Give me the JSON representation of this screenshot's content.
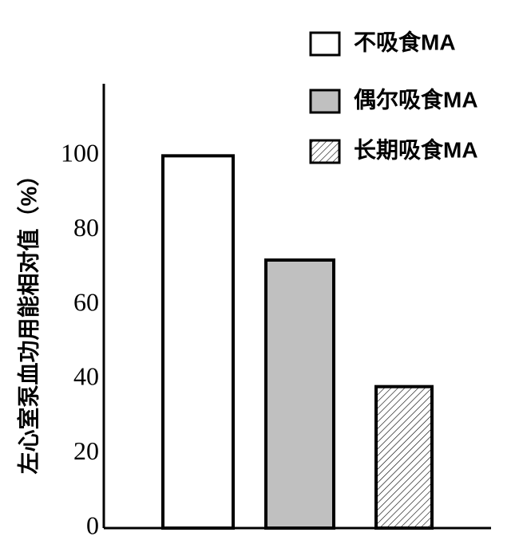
{
  "chart_data": {
    "type": "bar",
    "y_label": "左心室泵血功用能相对值（%）",
    "series": [
      {
        "name": "不吸食MA",
        "color": "#ffffff",
        "values": [
          100
        ]
      },
      {
        "name": "偶尔吸食MA",
        "color": "#c0c0c0",
        "values": [
          72
        ]
      },
      {
        "name": "长期吸食MA",
        "color": "#ffffff",
        "hatch": true,
        "values": [
          38
        ]
      }
    ],
    "ylim": [
      0,
      120
    ],
    "yticks": [
      0,
      20,
      40,
      60,
      80,
      100
    ],
    "grid": false
  }
}
